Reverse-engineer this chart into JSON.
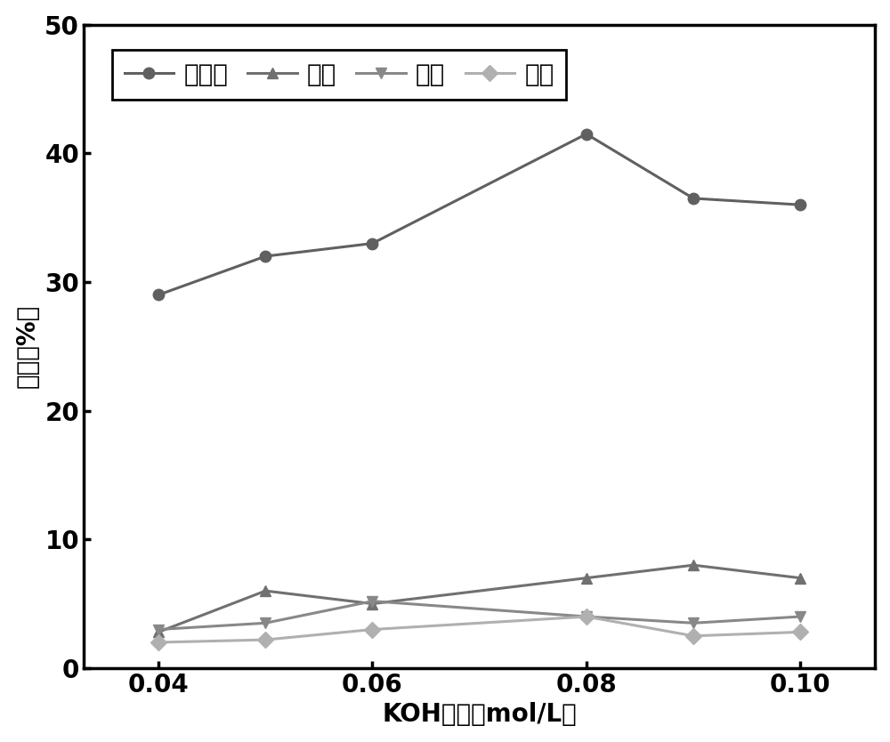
{
  "x": [
    0.04,
    0.05,
    0.06,
    0.08,
    0.09,
    0.1
  ],
  "xusuan": [
    29.0,
    32.0,
    33.0,
    41.5,
    36.5,
    36.0
  ],
  "rusuan": [
    2.8,
    6.0,
    5.0,
    7.0,
    8.0,
    7.0
  ],
  "jiasuan": [
    3.0,
    3.5,
    5.2,
    4.0,
    3.5,
    4.0
  ],
  "yisuan": [
    2.0,
    2.2,
    3.0,
    4.0,
    2.5,
    2.8
  ],
  "labels": [
    "木糖酸",
    "乳酸",
    "甲酸",
    "乙酸"
  ],
  "xlabel": "KOH浓度（mol/L）",
  "ylabel": "产率（%）",
  "ylim": [
    0,
    50
  ],
  "xlim": [
    0.033,
    0.107
  ],
  "xticks": [
    0.04,
    0.06,
    0.08,
    0.1
  ],
  "yticks": [
    0,
    10,
    20,
    30,
    40,
    50
  ],
  "colors": [
    "#606060",
    "#707070",
    "#888888",
    "#b0b0b0"
  ],
  "linewidth": 2.2,
  "markersize": 9,
  "label_fontsize": 20,
  "tick_fontsize": 20,
  "legend_fontsize": 20
}
